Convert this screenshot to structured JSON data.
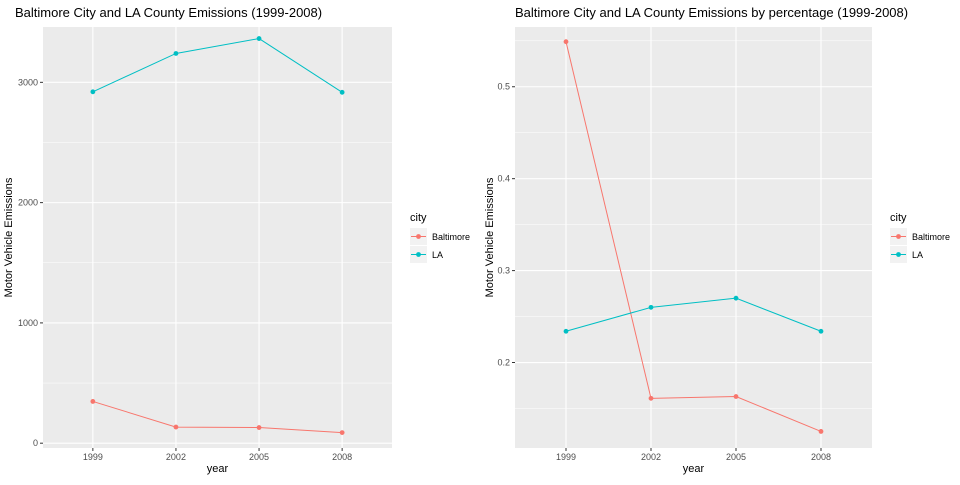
{
  "colors": {
    "panel_bg": "#ebebeb",
    "grid_major": "#ffffff",
    "baltimore": "#f8766d",
    "la": "#00bfc4",
    "axis_text": "#4d4d4d",
    "title_text": "#000000"
  },
  "chart_data": [
    {
      "type": "line",
      "title": "Baltimore City and LA County Emissions (1999-2008)",
      "xlabel": "year",
      "ylabel": "Motor Vehicle Emissions",
      "categories": [
        "1999",
        "2002",
        "2005",
        "2008"
      ],
      "ylim": [
        -40,
        3460
      ],
      "yticks": [
        0,
        1000,
        2000,
        3000
      ],
      "ytick_labels": [
        "0",
        "1000",
        "2000",
        "3000"
      ],
      "grid": true,
      "legend_title": "city",
      "legend_position": "right",
      "series": [
        {
          "name": "Baltimore",
          "color": "#f8766d",
          "values": [
            347,
            134,
            130,
            88
          ]
        },
        {
          "name": "LA",
          "color": "#00bfc4",
          "values": [
            2921,
            3240,
            3364,
            2917
          ]
        }
      ]
    },
    {
      "type": "line",
      "title": "Baltimore City and LA County Emissions by percentage (1999-2008)",
      "xlabel": "year",
      "ylabel": "Motor Vehicle Emissions",
      "categories": [
        "1999",
        "2002",
        "2005",
        "2008"
      ],
      "ylim": [
        0.107,
        0.565
      ],
      "yticks": [
        0.2,
        0.3,
        0.4,
        0.5
      ],
      "ytick_labels": [
        "0.2",
        "0.3",
        "0.4",
        "0.5"
      ],
      "grid": true,
      "legend_title": "city",
      "legend_position": "right",
      "series": [
        {
          "name": "Baltimore",
          "color": "#f8766d",
          "values": [
            0.549,
            0.161,
            0.163,
            0.125
          ]
        },
        {
          "name": "LA",
          "color": "#00bfc4",
          "values": [
            0.234,
            0.26,
            0.27,
            0.234
          ]
        }
      ]
    }
  ]
}
